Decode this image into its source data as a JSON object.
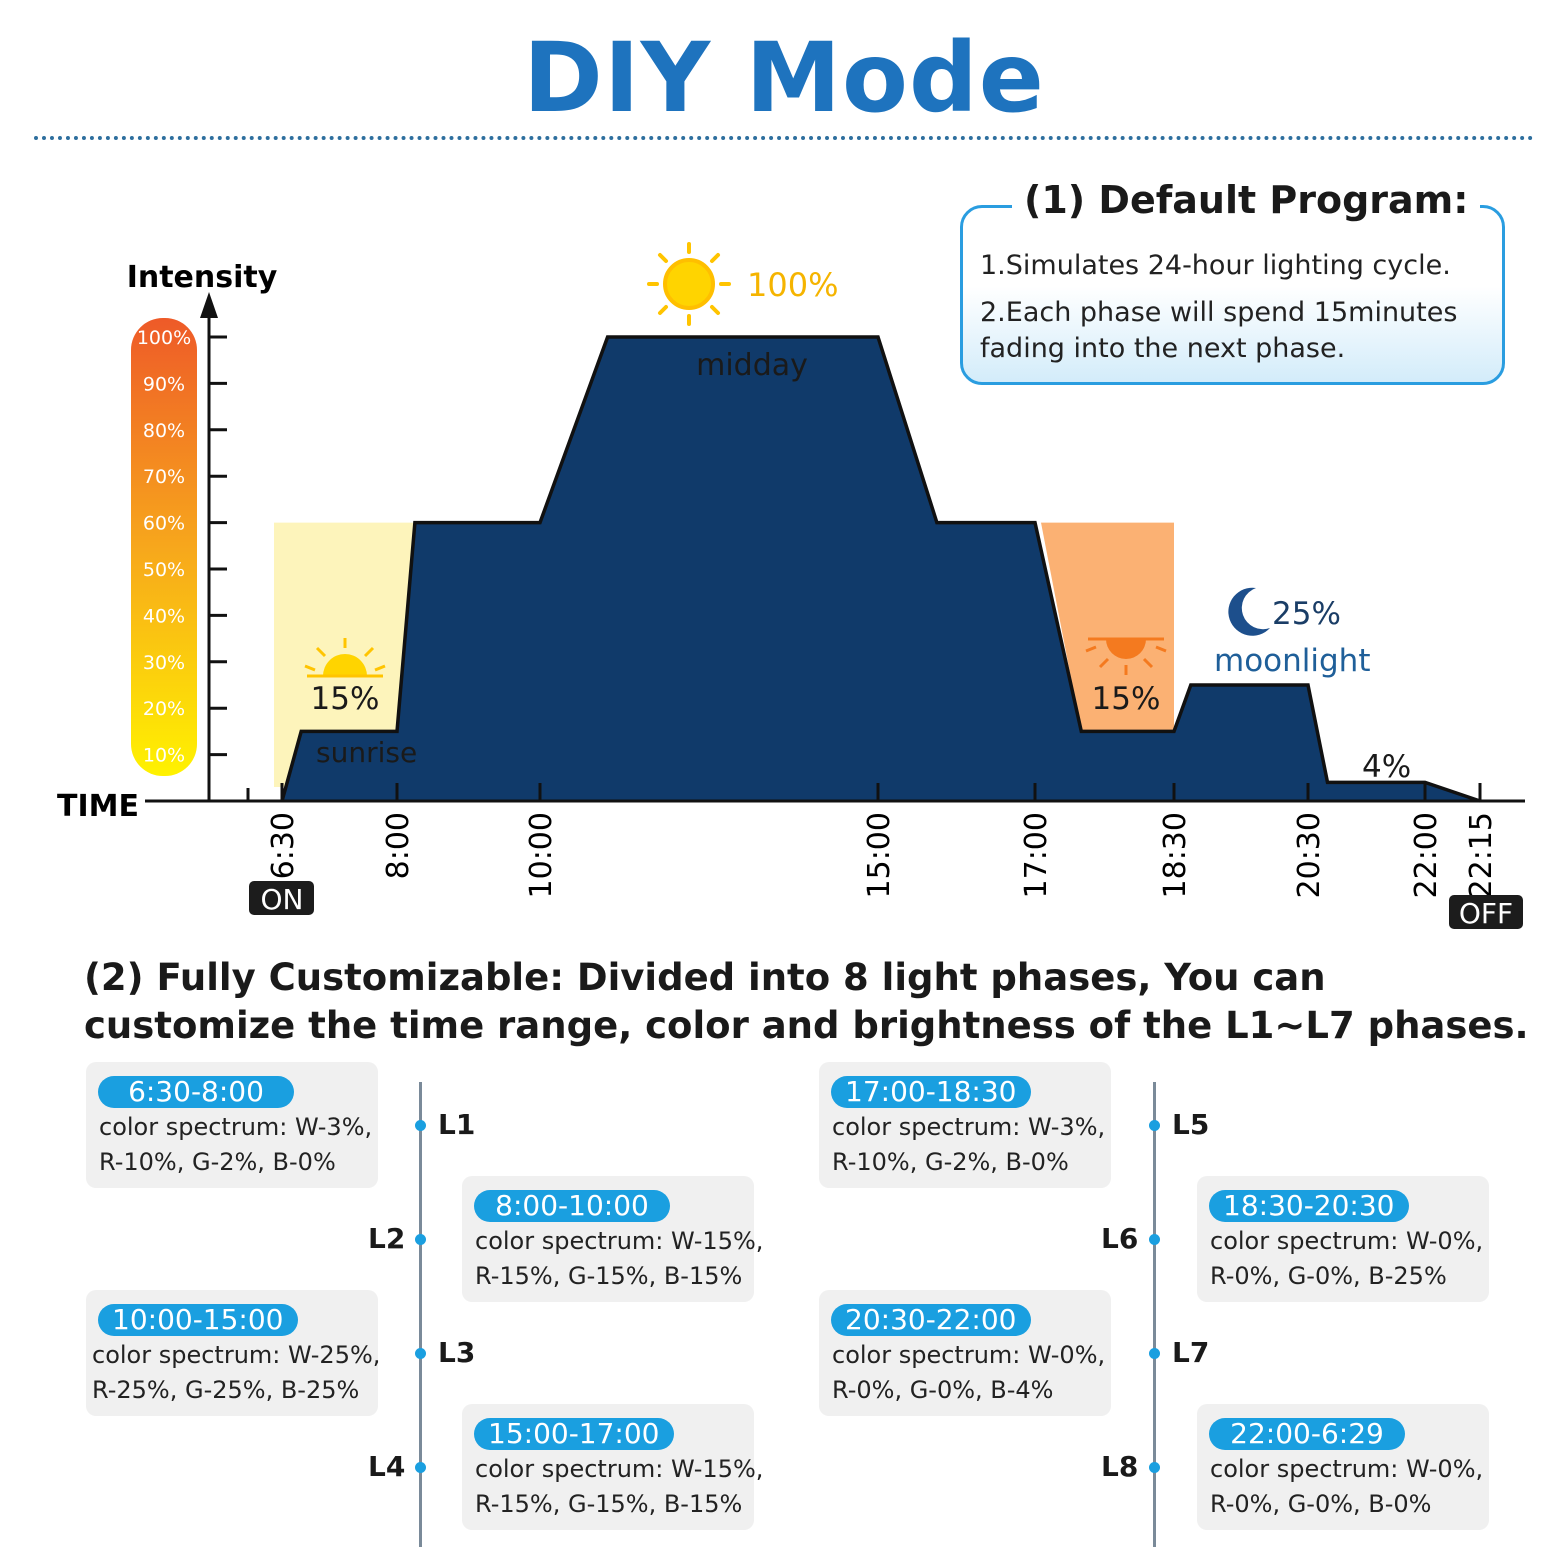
{
  "title": "DIY Mode",
  "default_program": {
    "heading": "(1) Default Program:",
    "lines": [
      "1.Simulates 24-hour lighting cycle.",
      "2.Each phase will spend 15minutes",
      "fading into the next phase."
    ]
  },
  "chart_data": {
    "type": "area",
    "ylabel": "Intensity",
    "xlabel": "TIME",
    "ylim": [
      0,
      100
    ],
    "y_ticks": [
      "100%",
      "90%",
      "80%",
      "70%",
      "60%",
      "50%",
      "40%",
      "30%",
      "20%",
      "10%"
    ],
    "x_ticks": [
      "6:30",
      "8:00",
      "10:00",
      "15:00",
      "17:00",
      "18:30",
      "20:30",
      "22:00",
      "22:15"
    ],
    "on_label": "ON",
    "off_label": "OFF",
    "series": [
      {
        "x": [
          "6:30",
          "6:45",
          "8:00",
          "8:15",
          "10:00",
          "11:00",
          "15:00",
          "15:45",
          "17:00",
          "17:30",
          "18:30",
          "18:45",
          "20:30",
          "20:45",
          "22:00",
          "22:15"
        ],
        "y": [
          0,
          15,
          15,
          60,
          60,
          100,
          100,
          60,
          60,
          15,
          15,
          25,
          25,
          4,
          4,
          0
        ]
      }
    ],
    "annotations": [
      {
        "text": "15%",
        "x": "7:00",
        "y": 15
      },
      {
        "text": "sunrise",
        "x": "7:15",
        "y": 15
      },
      {
        "text": "100%",
        "x": "13:00",
        "y": 100
      },
      {
        "text": "midday",
        "x": "13:00",
        "y": 100
      },
      {
        "text": "15%",
        "x": "18:00",
        "y": 15
      },
      {
        "text": "25%",
        "x": "20:00",
        "y": 25
      },
      {
        "text": "moonlight",
        "x": "19:45",
        "y": 25
      },
      {
        "text": "4%",
        "x": "21:30",
        "y": 4
      }
    ],
    "grid": false,
    "colors": {
      "yellow": "#ffd700",
      "orange": "#f59a3b",
      "blue": "#1f5f99",
      "axis": "#111111"
    }
  },
  "customizable": {
    "heading_lines": [
      "(2) Fully Customizable: Divided into 8 light phases, You can",
      "customize the time range, color and brightness of the L1~L7 phases."
    ],
    "phases": [
      {
        "label": "L1",
        "time": "6:30-8:00",
        "line1": "color spectrum: W-3%,",
        "line2": "R-10%, G-2%, B-0%"
      },
      {
        "label": "L2",
        "time": "8:00-10:00",
        "line1": "color spectrum: W-15%,",
        "line2": "R-15%, G-15%, B-15%"
      },
      {
        "label": "L3",
        "time": "10:00-15:00",
        "line1": "color spectrum: W-25%,",
        "line2": "R-25%, G-25%, B-25%"
      },
      {
        "label": "L4",
        "time": "15:00-17:00",
        "line1": "color spectrum: W-15%,",
        "line2": "R-15%, G-15%, B-15%"
      },
      {
        "label": "L5",
        "time": "17:00-18:30",
        "line1": "color spectrum: W-3%,",
        "line2": "R-10%, G-2%, B-0%"
      },
      {
        "label": "L6",
        "time": "18:30-20:30",
        "line1": "color spectrum: W-0%,",
        "line2": "R-0%, G-0%, B-25%"
      },
      {
        "label": "L7",
        "time": "20:30-22:00",
        "line1": "color spectrum: W-0%,",
        "line2": "R-0%, G-0%, B-4%"
      },
      {
        "label": "L8",
        "time": "22:00-6:29",
        "line1": "color spectrum: W-0%,",
        "line2": "R-0%, G-0%, B-0%"
      }
    ]
  }
}
